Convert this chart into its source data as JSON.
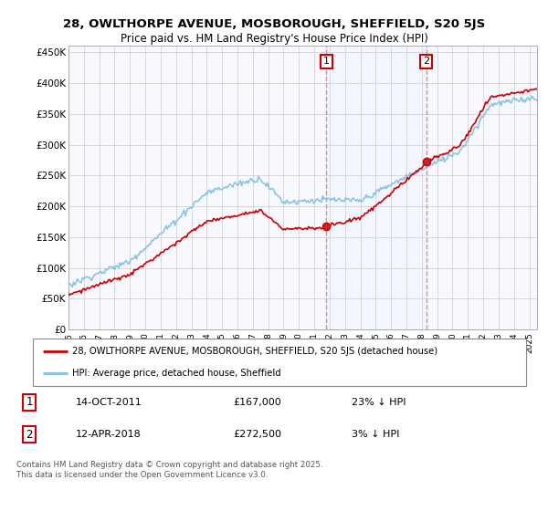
{
  "title_line1": "28, OWLTHORPE AVENUE, MOSBOROUGH, SHEFFIELD, S20 5JS",
  "title_line2": "Price paid vs. HM Land Registry's House Price Index (HPI)",
  "yticks": [
    0,
    50000,
    100000,
    150000,
    200000,
    250000,
    300000,
    350000,
    400000,
    450000
  ],
  "ytick_labels": [
    "£0",
    "£50K",
    "£100K",
    "£150K",
    "£200K",
    "£250K",
    "£300K",
    "£350K",
    "£400K",
    "£450K"
  ],
  "ylim": [
    0,
    460000
  ],
  "xlim_start": 1995.0,
  "xlim_end": 2025.5,
  "xticks": [
    1995,
    1996,
    1997,
    1998,
    1999,
    2000,
    2001,
    2002,
    2003,
    2004,
    2005,
    2006,
    2007,
    2008,
    2009,
    2010,
    2011,
    2012,
    2013,
    2014,
    2015,
    2016,
    2017,
    2018,
    2019,
    2020,
    2021,
    2022,
    2023,
    2024,
    2025
  ],
  "hpi_color": "#7fbfdf",
  "price_color": "#cc0000",
  "sale1_x": 2011.79,
  "sale1_y": 167000,
  "sale2_x": 2018.29,
  "sale2_y": 272500,
  "vline_color": "#ee8888",
  "shade_color": "#ddeeff",
  "legend_label1": "28, OWLTHORPE AVENUE, MOSBOROUGH, SHEFFIELD, S20 5JS (detached house)",
  "legend_label2": "HPI: Average price, detached house, Sheffield",
  "annot1_label": "1",
  "annot2_label": "2",
  "annot1_date": "14-OCT-2011",
  "annot1_price": "£167,000",
  "annot1_hpi": "23% ↓ HPI",
  "annot2_date": "12-APR-2018",
  "annot2_price": "£272,500",
  "annot2_hpi": "3% ↓ HPI",
  "footnote": "Contains HM Land Registry data © Crown copyright and database right 2025.\nThis data is licensed under the Open Government Licence v3.0.",
  "background_color": "#ffffff"
}
